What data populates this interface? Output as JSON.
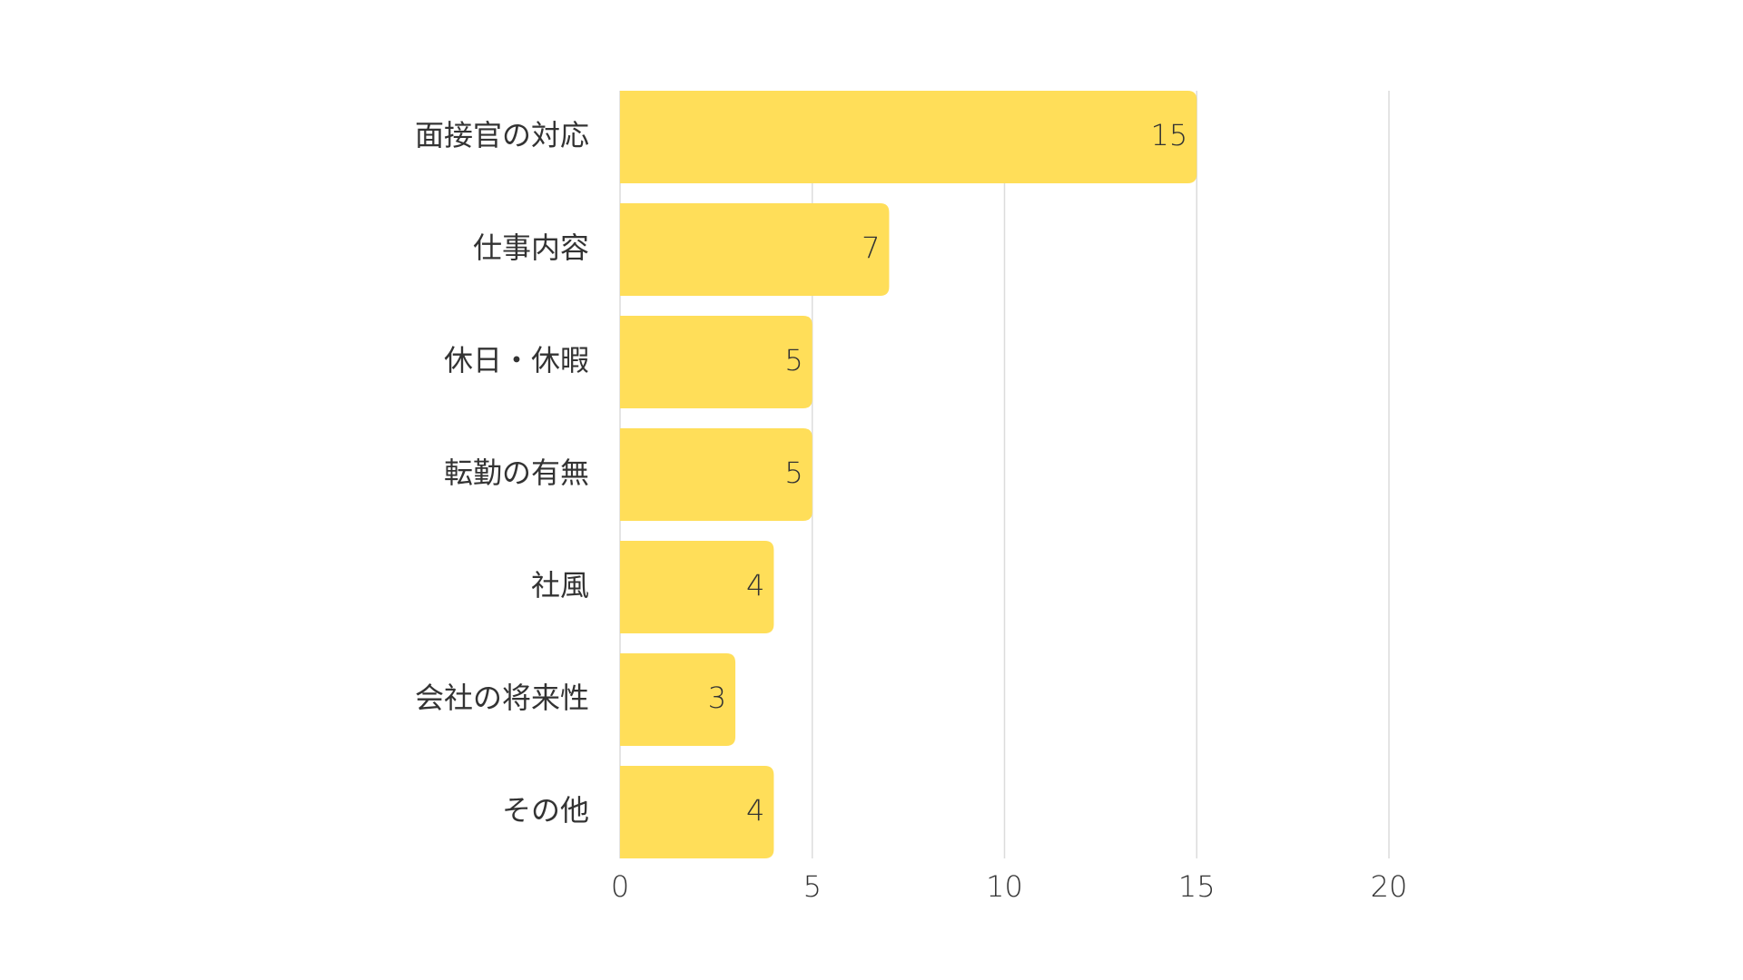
{
  "chart_data": {
    "type": "hbar",
    "categories": [
      "面接官の対応",
      "仕事内容",
      "休日・休暇",
      "転勤の有無",
      "社風",
      "会社の将来性",
      "その他"
    ],
    "values": [
      15,
      7,
      5,
      5,
      4,
      3,
      4
    ],
    "color": "#ffde59",
    "xlim": [
      0,
      20
    ],
    "xticks": [
      0,
      5,
      10,
      15,
      20
    ],
    "grid": true
  }
}
